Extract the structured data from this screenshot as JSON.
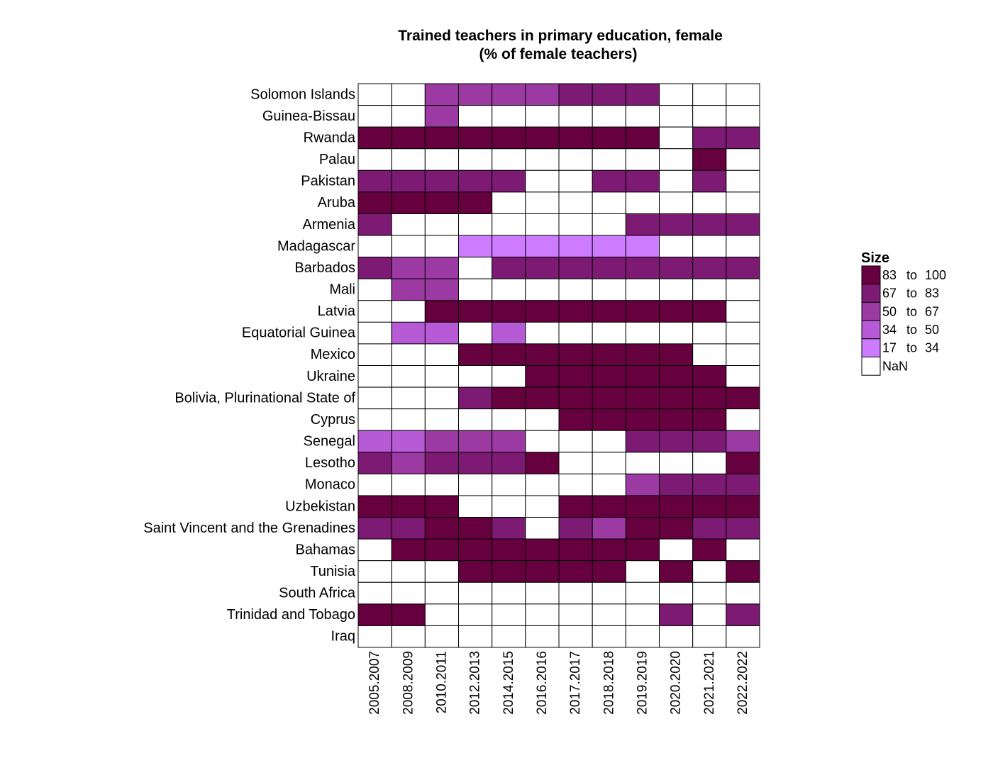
{
  "chart_data": {
    "type": "heatmap",
    "title": "Trained teachers in primary education, female",
    "subtitle": "(% of female teachers)",
    "rows": [
      "Solomon Islands",
      "Guinea-Bissau",
      "Rwanda",
      "Palau",
      "Pakistan",
      "Aruba",
      "Armenia",
      "Madagascar",
      "Barbados",
      "Mali",
      "Latvia",
      "Equatorial Guinea",
      "Mexico",
      "Ukraine",
      "Bolivia, Plurinational State of",
      "Cyprus",
      "Senegal",
      "Lesotho",
      "Monaco",
      "Uzbekistan",
      "Saint Vincent and the Grenadines",
      "Bahamas",
      "Tunisia",
      "South Africa",
      "Trinidad and Tobago",
      "Iraq"
    ],
    "columns": [
      "2005.2007",
      "2008.2009",
      "2010.2011",
      "2012.2013",
      "2014.2015",
      "2016.2016",
      "2017.2017",
      "2018.2018",
      "2019.2019",
      "2020.2020",
      "2021.2021",
      "2022.2022"
    ],
    "values": [
      [
        null,
        null,
        58,
        58,
        58,
        58,
        75,
        75,
        75,
        null,
        null,
        null
      ],
      [
        null,
        null,
        58,
        null,
        null,
        null,
        null,
        null,
        null,
        null,
        null,
        null
      ],
      [
        95,
        95,
        95,
        95,
        95,
        95,
        95,
        95,
        95,
        null,
        75,
        75
      ],
      [
        null,
        null,
        null,
        null,
        null,
        null,
        null,
        null,
        null,
        null,
        95,
        null
      ],
      [
        75,
        75,
        75,
        75,
        75,
        null,
        null,
        75,
        75,
        null,
        75,
        null
      ],
      [
        95,
        95,
        95,
        95,
        null,
        null,
        null,
        null,
        null,
        null,
        null,
        null
      ],
      [
        75,
        null,
        null,
        null,
        null,
        null,
        null,
        null,
        75,
        75,
        75,
        75
      ],
      [
        null,
        null,
        null,
        25,
        25,
        25,
        25,
        25,
        25,
        null,
        null,
        null
      ],
      [
        75,
        58,
        58,
        null,
        75,
        75,
        75,
        75,
        75,
        75,
        75,
        75
      ],
      [
        null,
        58,
        58,
        null,
        null,
        null,
        null,
        null,
        null,
        null,
        null,
        null
      ],
      [
        null,
        null,
        95,
        95,
        95,
        95,
        95,
        95,
        95,
        95,
        95,
        null
      ],
      [
        null,
        42,
        42,
        null,
        42,
        null,
        null,
        null,
        null,
        null,
        null,
        null
      ],
      [
        null,
        null,
        null,
        95,
        95,
        95,
        95,
        95,
        95,
        95,
        null,
        null
      ],
      [
        null,
        null,
        null,
        null,
        null,
        95,
        95,
        95,
        95,
        95,
        95,
        null
      ],
      [
        null,
        null,
        null,
        75,
        95,
        95,
        95,
        95,
        95,
        95,
        95,
        95
      ],
      [
        null,
        null,
        null,
        null,
        null,
        null,
        95,
        95,
        95,
        95,
        95,
        null
      ],
      [
        42,
        42,
        58,
        58,
        58,
        null,
        null,
        null,
        75,
        75,
        75,
        58
      ],
      [
        75,
        58,
        75,
        75,
        75,
        95,
        null,
        null,
        null,
        null,
        null,
        95
      ],
      [
        null,
        null,
        null,
        null,
        null,
        null,
        null,
        null,
        58,
        75,
        75,
        75
      ],
      [
        95,
        95,
        95,
        null,
        null,
        null,
        95,
        95,
        95,
        95,
        95,
        95
      ],
      [
        75,
        75,
        95,
        95,
        75,
        null,
        75,
        58,
        95,
        95,
        75,
        75
      ],
      [
        null,
        95,
        95,
        95,
        95,
        95,
        95,
        95,
        95,
        null,
        95,
        null
      ],
      [
        null,
        null,
        null,
        95,
        95,
        95,
        95,
        95,
        null,
        95,
        null,
        95
      ],
      [
        null,
        null,
        null,
        null,
        null,
        null,
        null,
        null,
        null,
        null,
        null,
        null
      ],
      [
        95,
        95,
        null,
        null,
        null,
        null,
        null,
        null,
        null,
        75,
        null,
        75
      ],
      [
        null,
        null,
        null,
        null,
        null,
        null,
        null,
        null,
        null,
        null,
        null,
        null
      ]
    ],
    "legend": {
      "title": "Size",
      "placement": "right",
      "bins": [
        {
          "from": "83",
          "to_word": "to",
          "to": "100",
          "min": 83,
          "max": 100,
          "color": "#67003F"
        },
        {
          "from": "67",
          "to_word": "to",
          "to": "83",
          "min": 67,
          "max": 83,
          "color": "#7D1A73"
        },
        {
          "from": "50",
          "to_word": "to",
          "to": "67",
          "min": 50,
          "max": 67,
          "color": "#9C3AA3"
        },
        {
          "from": "34",
          "to_word": "to",
          "to": "50",
          "min": 34,
          "max": 50,
          "color": "#B75AD6"
        },
        {
          "from": "17",
          "to_word": "to",
          "to": "34",
          "min": 17,
          "max": 34,
          "color": "#CD7BFF"
        }
      ],
      "nan_label": "NaN",
      "nan_color": "#FFFFFF"
    }
  }
}
